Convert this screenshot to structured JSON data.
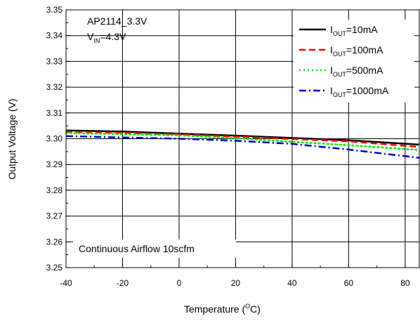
{
  "chart_data": {
    "type": "line",
    "xlabel": "Temperature (",
    "xlabel_sup": "O",
    "xlabel_end": "C)",
    "ylabel": "Output Voltage (V)",
    "xlim": [
      -40,
      85
    ],
    "ylim": [
      3.25,
      3.35
    ],
    "x_ticks": [
      -40,
      -20,
      0,
      20,
      40,
      60,
      80
    ],
    "x_tick_labels": [
      "-40",
      "-20",
      "0",
      "20",
      "40",
      "60",
      "80"
    ],
    "y_ticks": [
      3.25,
      3.26,
      3.27,
      3.28,
      3.29,
      3.3,
      3.31,
      3.32,
      3.33,
      3.34,
      3.35
    ],
    "y_tick_labels": [
      "3.25",
      "3.26",
      "3.27",
      "3.28",
      "3.29",
      "3.30",
      "3.31",
      "3.32",
      "3.33",
      "3.34",
      "3.35"
    ],
    "grid": true,
    "legend_position": "top-right",
    "annotations": {
      "device": "AP2114_3.3V",
      "vin_main": "V",
      "vin_sub": "IN",
      "vin_value": "=4.3V",
      "airflow": "Continuous Airflow 10scfm"
    },
    "series": [
      {
        "name_main": "I",
        "name_sub": "OUT",
        "name_value": "=10mA",
        "color": "#000000",
        "dash": "solid",
        "x": [
          -40,
          -20,
          0,
          20,
          40,
          60,
          85
        ],
        "y": [
          3.3032,
          3.3028,
          3.302,
          3.3012,
          3.3003,
          3.2994,
          3.2977
        ]
      },
      {
        "name_main": "I",
        "name_sub": "OUT",
        "name_value": "=100mA",
        "color": "#ff0000",
        "dash": "dashed",
        "x": [
          -40,
          -20,
          0,
          20,
          40,
          60,
          85
        ],
        "y": [
          3.3027,
          3.3023,
          3.3017,
          3.3008,
          3.2999,
          3.299,
          3.2968
        ]
      },
      {
        "name_main": "I",
        "name_sub": "OUT",
        "name_value": "=500mA",
        "color": "#00ee00",
        "dash": "dotted",
        "x": [
          -40,
          -20,
          0,
          20,
          40,
          60,
          85
        ],
        "y": [
          3.3022,
          3.3018,
          3.3013,
          3.3002,
          3.2988,
          3.2975,
          3.2956
        ]
      },
      {
        "name_main": "I",
        "name_sub": "OUT",
        "name_value": "=1000mA",
        "color": "#0000cc",
        "dash": "dashdot",
        "x": [
          -40,
          -20,
          0,
          20,
          40,
          60,
          85
        ],
        "y": [
          3.301,
          3.3005,
          3.3,
          3.2992,
          3.298,
          3.2958,
          3.2926
        ]
      }
    ]
  }
}
